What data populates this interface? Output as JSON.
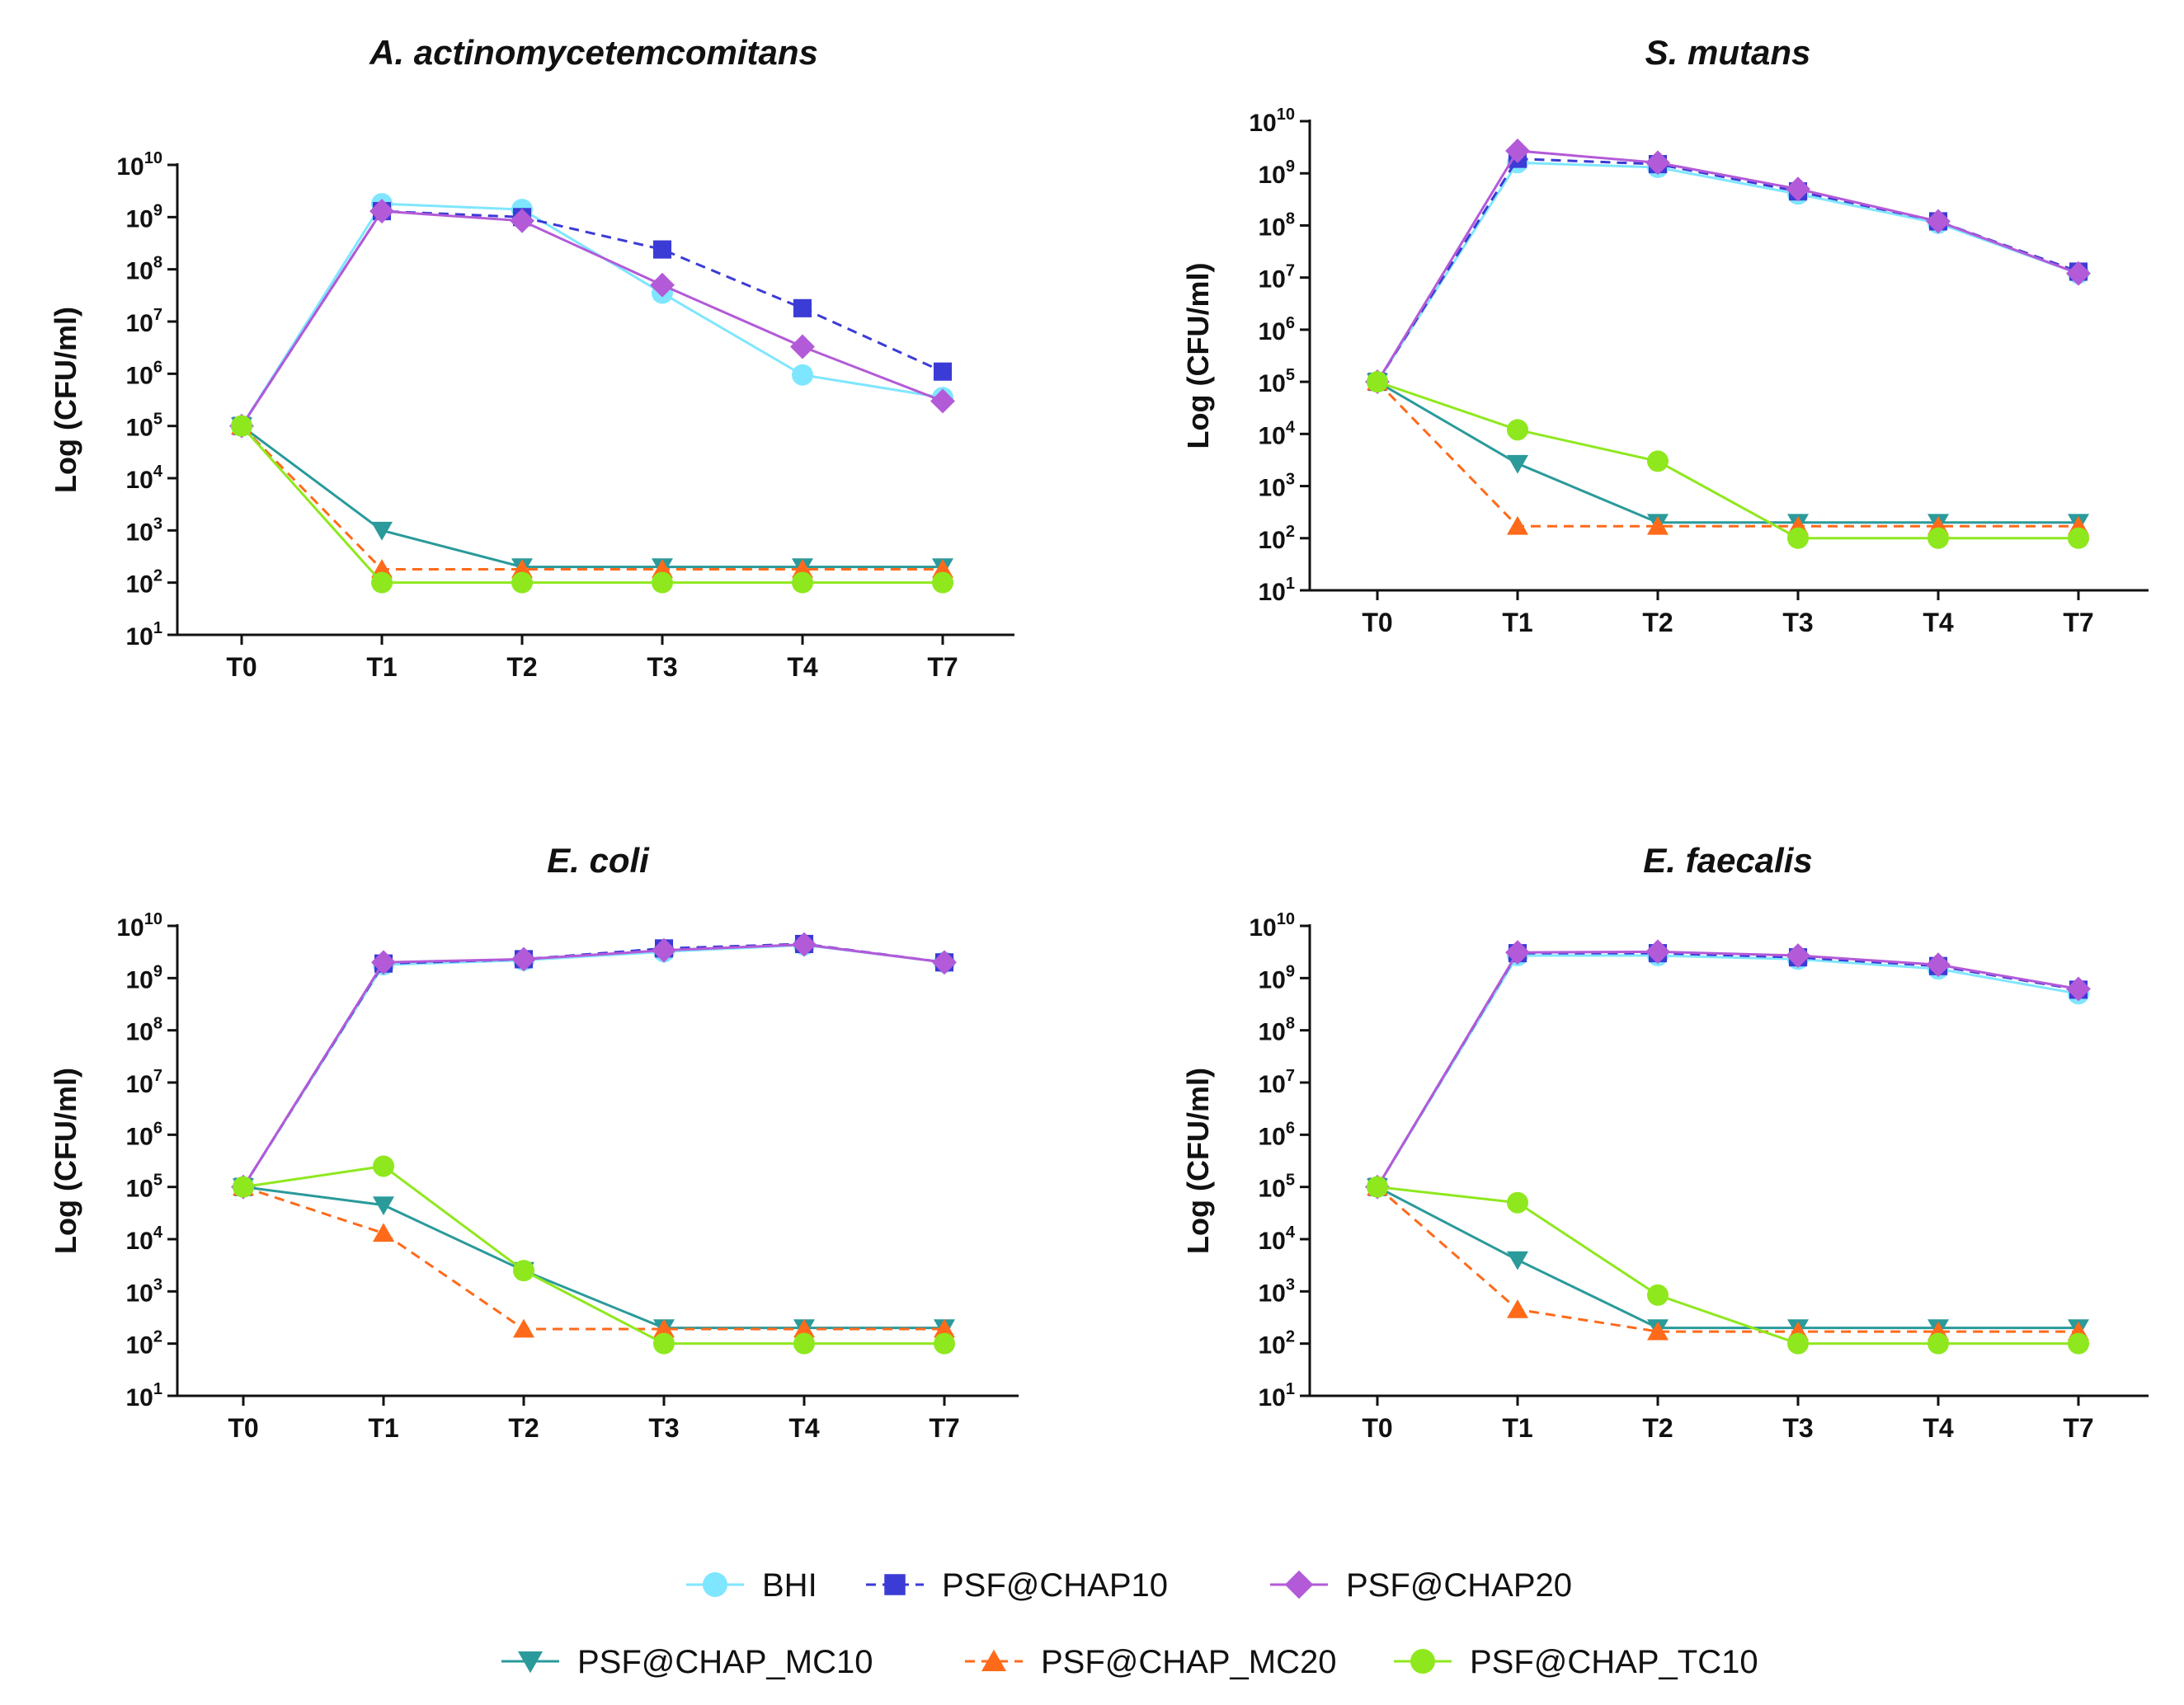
{
  "series_styles": [
    {
      "name": "BHI",
      "color": "#7fe6ff",
      "marker": "circle",
      "dashed": false
    },
    {
      "name": "PSF@CHAP10",
      "color": "#3b3bd6",
      "marker": "square",
      "dashed": true
    },
    {
      "name": "PSF@CHAP20",
      "color": "#b35ad8",
      "marker": "diamond",
      "dashed": false
    },
    {
      "name": "PSF@CHAP_MC10",
      "color": "#2a9a9a",
      "marker": "triangle-down",
      "dashed": false
    },
    {
      "name": "PSF@CHAP_MC20",
      "color": "#ff6a1a",
      "marker": "triangle-up",
      "dashed": true
    },
    {
      "name": "PSF@CHAP_TC10",
      "color": "#8fe81e",
      "marker": "circle",
      "dashed": false
    }
  ],
  "legend": {
    "row1": [
      "BHI",
      "PSF@CHAP10",
      "PSF@CHAP20"
    ],
    "row2": [
      "PSF@CHAP_MC10",
      "PSF@CHAP_MC20",
      "PSF@CHAP_TC10"
    ]
  },
  "chart_data": [
    {
      "type": "line",
      "title": "A. actinomycetemcomitans",
      "xlabel": "",
      "ylabel": "Log (CFU/ml)",
      "yscale": "log",
      "ylim_exponents": [
        1,
        10
      ],
      "categories": [
        "T0",
        "T1",
        "T2",
        "T3",
        "T4",
        "T7"
      ],
      "series": [
        {
          "name": "BHI",
          "values": [
            100000,
            1800000000,
            1400000000,
            35000000,
            950000,
            350000
          ]
        },
        {
          "name": "PSF@CHAP10",
          "values": [
            100000,
            1300000000,
            1000000000,
            240000000,
            18000000,
            1100000
          ]
        },
        {
          "name": "PSF@CHAP20",
          "values": [
            100000,
            1300000000,
            850000000,
            50000000,
            3300000,
            300000
          ]
        },
        {
          "name": "PSF@CHAP_MC10",
          "values": [
            100000,
            1000,
            200,
            200,
            200,
            200
          ]
        },
        {
          "name": "PSF@CHAP_MC20",
          "values": [
            100000,
            180,
            180,
            180,
            180,
            180
          ]
        },
        {
          "name": "PSF@CHAP_TC10",
          "values": [
            100000,
            100,
            100,
            100,
            100,
            100
          ]
        }
      ]
    },
    {
      "type": "line",
      "title": "S. mutans",
      "xlabel": "",
      "ylabel": "Log (CFU/ml)",
      "yscale": "log",
      "ylim_exponents": [
        1,
        10
      ],
      "categories": [
        "T0",
        "T1",
        "T2",
        "T3",
        "T4",
        "T7"
      ],
      "series": [
        {
          "name": "BHI",
          "values": [
            100000,
            1600000000,
            1300000000,
            400000000,
            110000000,
            12000000
          ]
        },
        {
          "name": "PSF@CHAP10",
          "values": [
            100000,
            1900000000,
            1500000000,
            450000000,
            120000000,
            13000000
          ]
        },
        {
          "name": "PSF@CHAP20",
          "values": [
            100000,
            2700000000,
            1600000000,
            500000000,
            120000000,
            12000000
          ]
        },
        {
          "name": "PSF@CHAP_MC10",
          "values": [
            100000,
            2700,
            200,
            200,
            200,
            200
          ]
        },
        {
          "name": "PSF@CHAP_MC20",
          "values": [
            100000,
            170,
            170,
            170,
            170,
            170
          ]
        },
        {
          "name": "PSF@CHAP_TC10",
          "values": [
            100000,
            12000,
            3000,
            100,
            100,
            100
          ]
        }
      ]
    },
    {
      "type": "line",
      "title": "E. coli",
      "xlabel": "",
      "ylabel": "Log (CFU/ml)",
      "yscale": "log",
      "ylim_exponents": [
        1,
        10
      ],
      "categories": [
        "T0",
        "T1",
        "T2",
        "T3",
        "T4",
        "T7"
      ],
      "series": [
        {
          "name": "BHI",
          "values": [
            100000,
            1800000000,
            2200000000,
            3200000000,
            4300000000,
            2000000000
          ]
        },
        {
          "name": "PSF@CHAP10",
          "values": [
            100000,
            1900000000,
            2300000000,
            3700000000,
            4500000000,
            2000000000
          ]
        },
        {
          "name": "PSF@CHAP20",
          "values": [
            100000,
            2000000000,
            2300000000,
            3400000000,
            4400000000,
            2000000000
          ]
        },
        {
          "name": "PSF@CHAP_MC10",
          "values": [
            100000,
            45000,
            2500,
            200,
            200,
            200
          ]
        },
        {
          "name": "PSF@CHAP_MC20",
          "values": [
            100000,
            13000,
            190,
            190,
            190,
            190
          ]
        },
        {
          "name": "PSF@CHAP_TC10",
          "values": [
            100000,
            250000,
            2500,
            100,
            100,
            100
          ]
        }
      ]
    },
    {
      "type": "line",
      "title": "E. faecalis",
      "xlabel": "",
      "ylabel": "Log (CFU/ml)",
      "yscale": "log",
      "ylim_exponents": [
        1,
        10
      ],
      "categories": [
        "T0",
        "T1",
        "T2",
        "T3",
        "T4",
        "T7"
      ],
      "series": [
        {
          "name": "BHI",
          "values": [
            100000,
            2700000000,
            2700000000,
            2300000000,
            1500000000,
            500000000
          ]
        },
        {
          "name": "PSF@CHAP10",
          "values": [
            100000,
            3000000000,
            3000000000,
            2500000000,
            1700000000,
            600000000
          ]
        },
        {
          "name": "PSF@CHAP20",
          "values": [
            100000,
            3100000000,
            3200000000,
            2700000000,
            1800000000,
            620000000
          ]
        },
        {
          "name": "PSF@CHAP_MC10",
          "values": [
            100000,
            4000,
            200,
            200,
            200,
            200
          ]
        },
        {
          "name": "PSF@CHAP_MC20",
          "values": [
            100000,
            450,
            170,
            170,
            170,
            170
          ]
        },
        {
          "name": "PSF@CHAP_TC10",
          "values": [
            100000,
            50000,
            850,
            100,
            100,
            100
          ]
        }
      ]
    }
  ]
}
